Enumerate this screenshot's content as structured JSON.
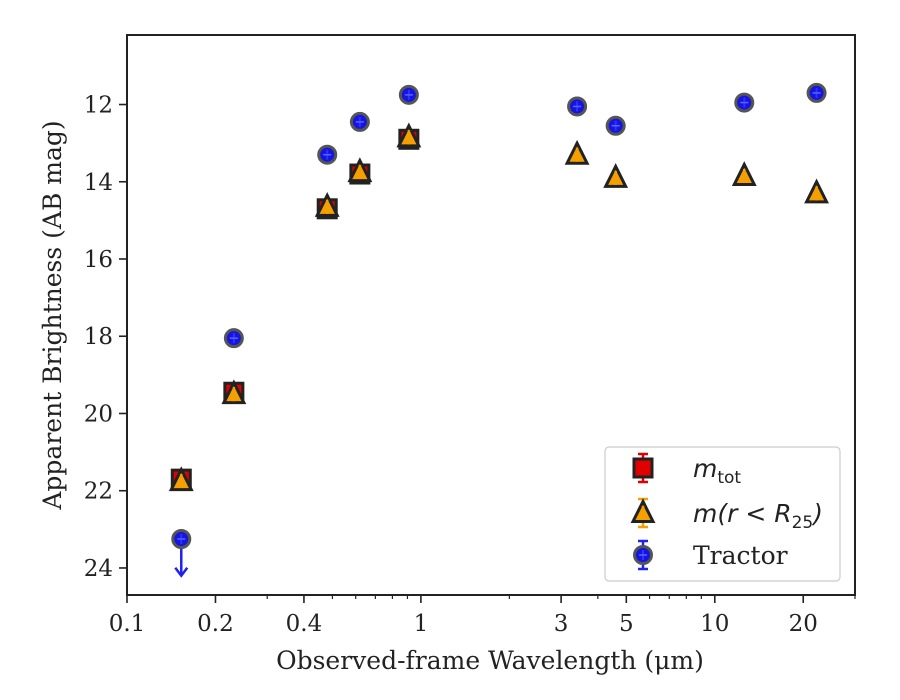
{
  "chart_data": {
    "type": "scatter",
    "title": "",
    "xlabel": "Observed-frame Wavelength (μm)",
    "ylabel": "Apparent Brightness (AB mag)",
    "x_scale": "log",
    "xlim": [
      0.1,
      30
    ],
    "ylim": [
      24.7,
      10.2
    ],
    "y_inverted": true,
    "grid": false,
    "legend_position": "lower-right",
    "x_ticks": [
      0.1,
      0.2,
      0.4,
      1,
      3,
      5,
      10,
      20
    ],
    "x_tick_labels": [
      "0.1",
      "0.2",
      "0.4",
      "1",
      "3",
      "5",
      "10",
      "20"
    ],
    "y_ticks": [
      12,
      14,
      16,
      18,
      20,
      22,
      24
    ],
    "y_tick_labels": [
      "12",
      "14",
      "16",
      "18",
      "20",
      "22",
      "24"
    ],
    "series": [
      {
        "name": "m_tot",
        "legend_main": "m",
        "legend_sub": "tot",
        "marker": "square",
        "color": "#e00000",
        "edge_color": "#222222",
        "x": [
          0.153,
          0.231,
          0.48,
          0.62,
          0.91
        ],
        "y": [
          21.7,
          19.45,
          14.7,
          13.8,
          12.9
        ]
      },
      {
        "name": "m(r < R_25)",
        "legend_main": "m(r < R",
        "legend_sub": "25",
        "legend_end": ")",
        "marker": "triangle",
        "color": "#f5a000",
        "edge_color": "#222222",
        "x": [
          0.153,
          0.231,
          0.48,
          0.62,
          0.91,
          3.4,
          4.6,
          12.6,
          22.2
        ],
        "y": [
          21.75,
          19.5,
          14.65,
          13.75,
          12.85,
          13.3,
          13.9,
          13.85,
          14.3
        ]
      },
      {
        "name": "Tractor",
        "legend_main": "Tractor",
        "marker": "circle",
        "color": "#1515e0",
        "edge_color": "#555555",
        "x": [
          0.153,
          0.231,
          0.48,
          0.62,
          0.91,
          3.4,
          4.6,
          12.6,
          22.2
        ],
        "y": [
          23.25,
          18.05,
          13.3,
          12.45,
          11.75,
          12.05,
          12.55,
          11.95,
          11.7
        ],
        "upper_limit_index": 0,
        "upper_limit_to": 24.2
      }
    ]
  }
}
